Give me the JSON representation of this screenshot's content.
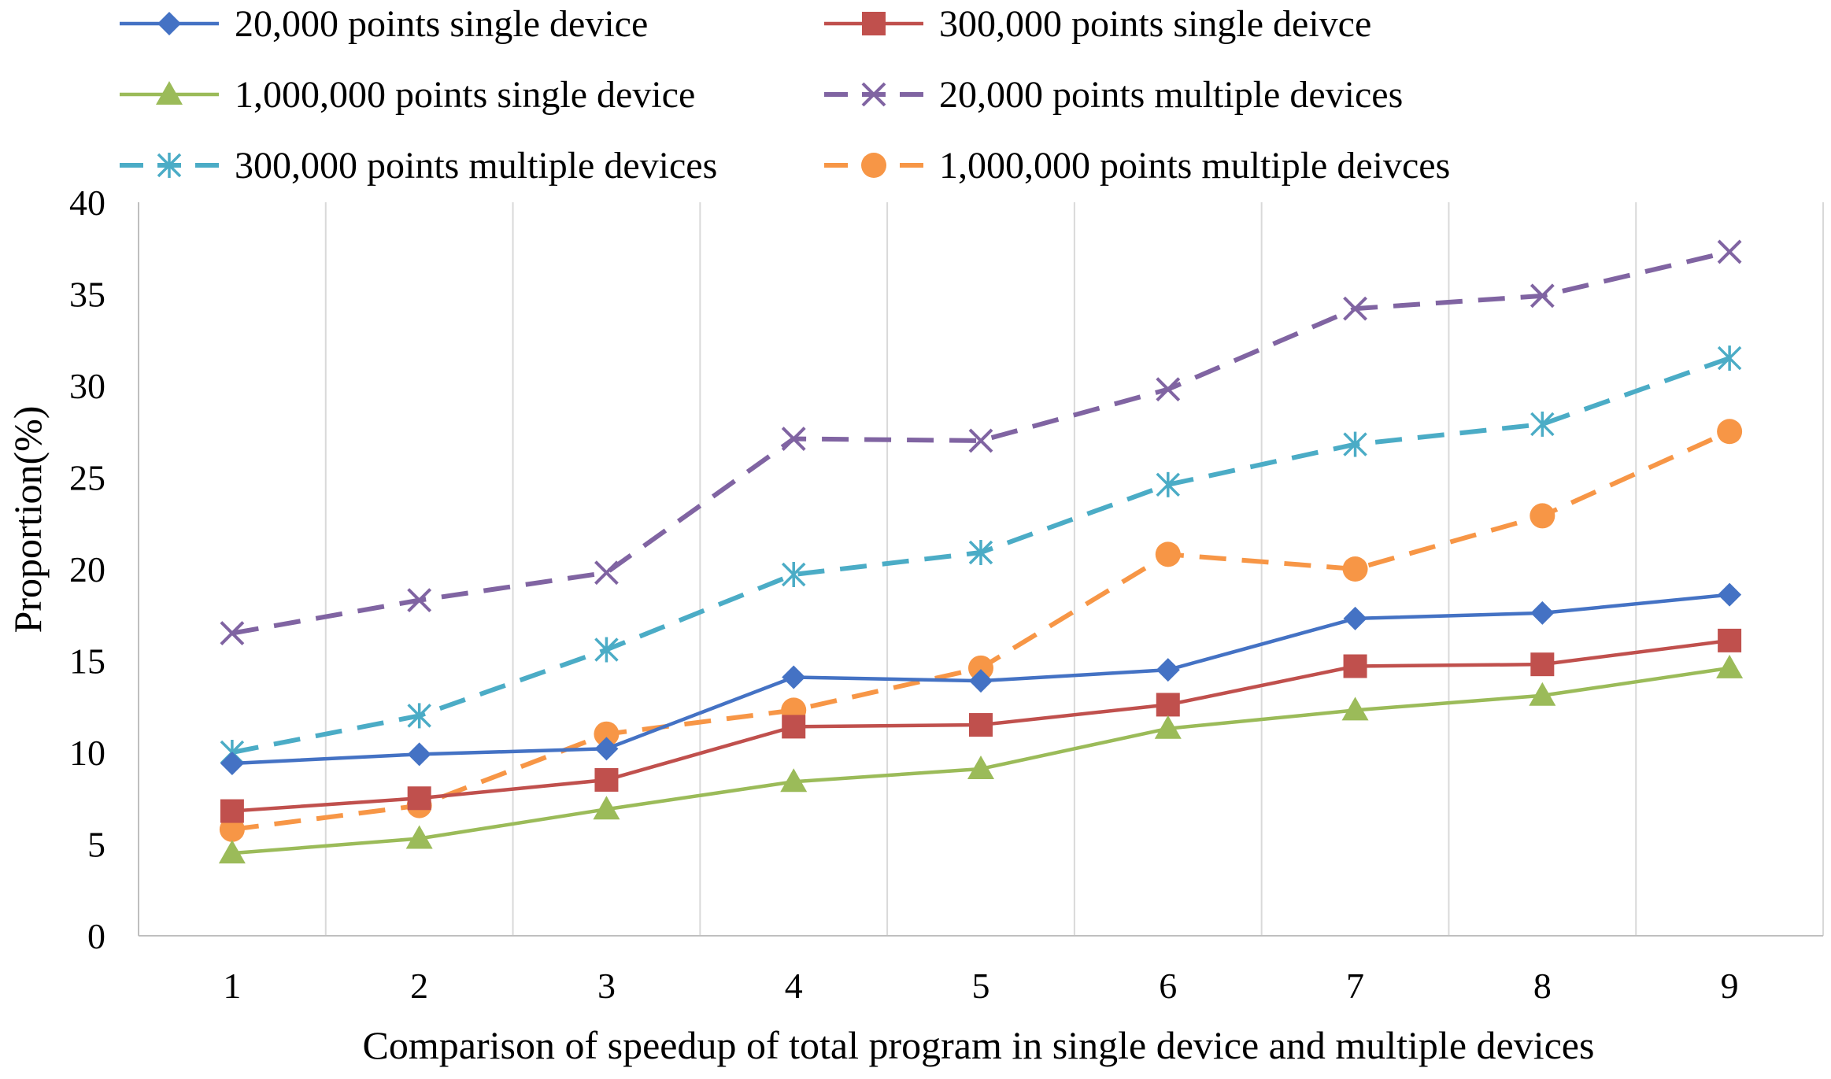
{
  "chart_data": {
    "type": "line",
    "title": "",
    "xlabel": "Comparison of speedup of total program  in single device and multiple devices",
    "ylabel": "Proportion(%)",
    "categories": [
      "1",
      "2",
      "3",
      "4",
      "5",
      "6",
      "7",
      "8",
      "9"
    ],
    "ylim": [
      0,
      40
    ],
    "yticks": [
      "0",
      "5",
      "10",
      "15",
      "20",
      "25",
      "30",
      "35",
      "40"
    ],
    "grid": "vertical",
    "legend_position": "top",
    "series": [
      {
        "name": "20,000 points single device",
        "color": "#4472C4",
        "marker": "diamond",
        "dash": "solid",
        "values": [
          9.4,
          9.9,
          10.2,
          14.1,
          13.9,
          14.5,
          17.3,
          17.6,
          18.6
        ]
      },
      {
        "name": "300,000 points single deivce",
        "color": "#C0504D",
        "marker": "square",
        "dash": "solid",
        "values": [
          6.8,
          7.5,
          8.5,
          11.4,
          11.5,
          12.6,
          14.7,
          14.8,
          16.1
        ]
      },
      {
        "name": "1,000,000 points single device",
        "color": "#9BBB59",
        "marker": "triangle",
        "dash": "solid",
        "values": [
          4.5,
          5.3,
          6.9,
          8.4,
          9.1,
          11.3,
          12.3,
          13.1,
          14.6
        ]
      },
      {
        "name": "20,000 points multiple devices",
        "color": "#8064A2",
        "marker": "x",
        "dash": "dashed",
        "values": [
          16.5,
          18.3,
          19.8,
          27.1,
          27.0,
          29.8,
          34.2,
          34.9,
          37.3
        ]
      },
      {
        "name": "300,000 points multiple devices",
        "color": "#4BACC6",
        "marker": "star",
        "dash": "dashed",
        "values": [
          10.0,
          12.0,
          15.6,
          19.7,
          20.9,
          24.6,
          26.8,
          27.9,
          31.5
        ]
      },
      {
        "name": "1,000,000 points multiple deivces",
        "color": "#F79646",
        "marker": "circle",
        "dash": "dashed",
        "values": [
          5.8,
          7.1,
          11.0,
          12.3,
          14.6,
          20.8,
          20.0,
          22.9,
          27.5
        ]
      }
    ]
  }
}
